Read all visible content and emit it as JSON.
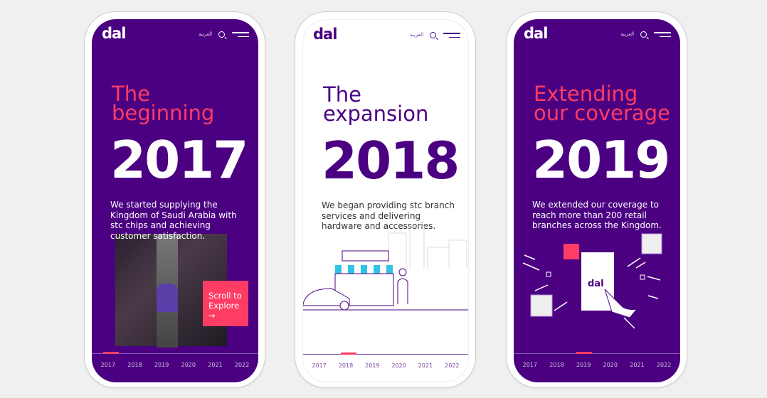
{
  "brand": {
    "logo": "dal",
    "accent": "#ff3c64",
    "purple": "#4b0082"
  },
  "nav": {
    "language": "العربية",
    "search_icon": "search-icon",
    "menu_icon": "hamburger-icon"
  },
  "timeline": [
    "2017",
    "2018",
    "2019",
    "2020",
    "2021",
    "2022"
  ],
  "phones": [
    {
      "heading1": "The",
      "heading2": "beginning",
      "year": "2017",
      "description": "We started supplying the Kingdom of Saudi Arabia with stc chips and achieving customer satisfaction.",
      "cta": "Scroll to Explore",
      "cta_arrow": "→",
      "active": 0
    },
    {
      "heading1": "The",
      "heading2": "expansion",
      "year": "2018",
      "description": "We began providing stc branch services and delivering hardware and accessories.",
      "active": 1
    },
    {
      "heading1": "Extending",
      "heading2": "our coverage",
      "year": "2019",
      "description": "We extended our coverage to reach more than 200 retail branches across the Kingdom.",
      "phone_logo": "dal",
      "active": 2
    }
  ]
}
